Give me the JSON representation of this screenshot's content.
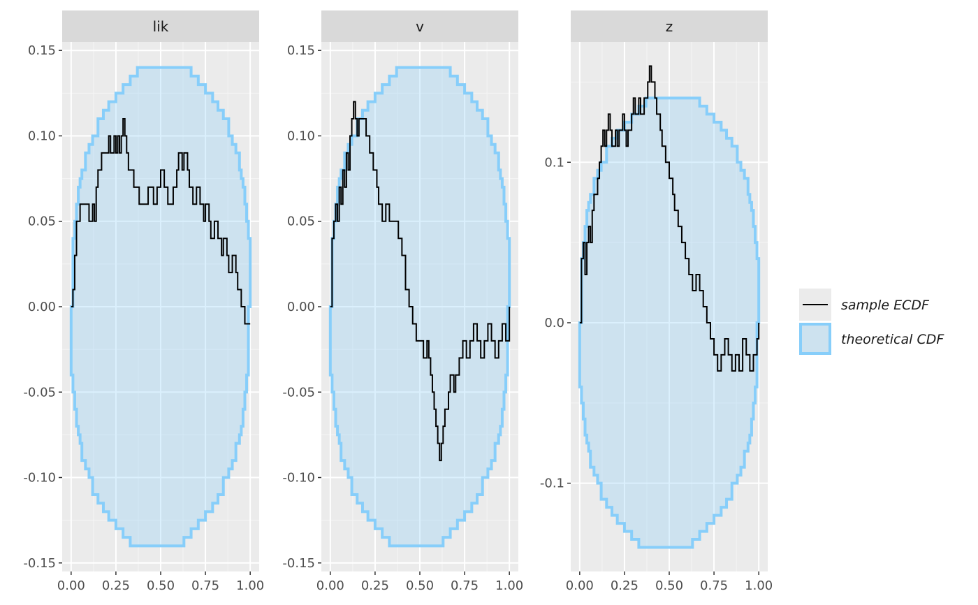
{
  "chart_data": {
    "type": "line",
    "legend": {
      "position": "right",
      "items": [
        {
          "label": "sample ECDF",
          "kind": "line",
          "color": "#000000"
        },
        {
          "label": "theoretical CDF",
          "kind": "fill",
          "fill": "#cce6f2",
          "stroke": "#87cefa"
        }
      ]
    },
    "xlim": [
      0,
      1
    ],
    "xticks": [
      0,
      0.25,
      0.5,
      0.75,
      1
    ],
    "xtick_labels": [
      "0.00",
      "0.25",
      "0.50",
      "0.75",
      "1.00"
    ],
    "band": {
      "x": [
        0,
        0.01,
        0.02,
        0.03,
        0.04,
        0.05,
        0.06,
        0.08,
        0.1,
        0.12,
        0.15,
        0.18,
        0.21,
        0.25,
        0.29,
        0.33,
        0.37,
        0.63,
        0.67,
        0.71,
        0.75,
        0.79,
        0.82,
        0.85,
        0.88,
        0.9,
        0.92,
        0.94,
        0.95,
        0.96,
        0.97,
        0.98,
        0.99,
        1.0
      ],
      "upper": [
        0,
        0.04,
        0.05,
        0.06,
        0.07,
        0.075,
        0.08,
        0.09,
        0.095,
        0.1,
        0.11,
        0.115,
        0.12,
        0.125,
        0.13,
        0.135,
        0.14,
        0.14,
        0.135,
        0.13,
        0.125,
        0.12,
        0.115,
        0.11,
        0.1,
        0.095,
        0.09,
        0.08,
        0.075,
        0.07,
        0.06,
        0.05,
        0.04,
        0.0
      ]
    },
    "panels": [
      {
        "strip": "lik",
        "ylim": [
          -0.155,
          0.155
        ],
        "yticks": [
          -0.15,
          -0.1,
          -0.05,
          0,
          0.05,
          0.1,
          0.15
        ],
        "ytick_labels": [
          "-0.15",
          "-0.10",
          "-0.05",
          "0.00",
          "0.05",
          "0.10",
          "0.15"
        ],
        "band_scale": 1.0,
        "ecdf": {
          "x": [
            0,
            0.01,
            0.02,
            0.03,
            0.05,
            0.08,
            0.1,
            0.12,
            0.13,
            0.14,
            0.15,
            0.17,
            0.19,
            0.21,
            0.22,
            0.24,
            0.25,
            0.26,
            0.27,
            0.28,
            0.29,
            0.3,
            0.31,
            0.32,
            0.33,
            0.35,
            0.38,
            0.41,
            0.43,
            0.46,
            0.48,
            0.5,
            0.52,
            0.54,
            0.57,
            0.59,
            0.6,
            0.62,
            0.63,
            0.65,
            0.66,
            0.68,
            0.7,
            0.72,
            0.74,
            0.75,
            0.77,
            0.78,
            0.8,
            0.82,
            0.84,
            0.85,
            0.87,
            0.88,
            0.9,
            0.92,
            0.93,
            0.95,
            0.97,
            0.98,
            1.0
          ],
          "y": [
            0,
            0.01,
            0.03,
            0.05,
            0.06,
            0.06,
            0.05,
            0.06,
            0.05,
            0.07,
            0.08,
            0.09,
            0.09,
            0.1,
            0.09,
            0.1,
            0.09,
            0.1,
            0.09,
            0.1,
            0.11,
            0.1,
            0.09,
            0.08,
            0.08,
            0.07,
            0.06,
            0.06,
            0.07,
            0.06,
            0.07,
            0.08,
            0.07,
            0.06,
            0.07,
            0.08,
            0.09,
            0.08,
            0.09,
            0.08,
            0.07,
            0.06,
            0.07,
            0.06,
            0.05,
            0.06,
            0.05,
            0.04,
            0.05,
            0.04,
            0.03,
            0.04,
            0.03,
            0.02,
            0.03,
            0.02,
            0.01,
            0.0,
            -0.01,
            -0.01,
            -0.01
          ]
        }
      },
      {
        "strip": "v",
        "ylim": [
          -0.155,
          0.155
        ],
        "yticks": [
          -0.15,
          -0.1,
          -0.05,
          0,
          0.05,
          0.1,
          0.15
        ],
        "ytick_labels": [
          "-0.15",
          "-0.10",
          "-0.05",
          "0.00",
          "0.05",
          "0.10",
          "0.15"
        ],
        "band_scale": 1.0,
        "ecdf": {
          "x": [
            0,
            0.01,
            0.02,
            0.03,
            0.04,
            0.05,
            0.06,
            0.07,
            0.08,
            0.09,
            0.1,
            0.11,
            0.12,
            0.13,
            0.14,
            0.15,
            0.16,
            0.18,
            0.2,
            0.22,
            0.24,
            0.26,
            0.27,
            0.29,
            0.31,
            0.33,
            0.36,
            0.38,
            0.4,
            0.42,
            0.44,
            0.46,
            0.48,
            0.5,
            0.52,
            0.54,
            0.55,
            0.56,
            0.57,
            0.58,
            0.59,
            0.6,
            0.61,
            0.62,
            0.63,
            0.64,
            0.66,
            0.67,
            0.69,
            0.7,
            0.72,
            0.74,
            0.76,
            0.78,
            0.8,
            0.82,
            0.84,
            0.86,
            0.88,
            0.9,
            0.92,
            0.94,
            0.96,
            0.98,
            1.0
          ],
          "y": [
            0,
            0.04,
            0.05,
            0.06,
            0.05,
            0.07,
            0.06,
            0.08,
            0.07,
            0.09,
            0.08,
            0.1,
            0.11,
            0.12,
            0.11,
            0.1,
            0.11,
            0.11,
            0.1,
            0.09,
            0.08,
            0.07,
            0.06,
            0.05,
            0.06,
            0.05,
            0.05,
            0.04,
            0.03,
            0.01,
            0.0,
            -0.01,
            -0.02,
            -0.02,
            -0.03,
            -0.02,
            -0.03,
            -0.04,
            -0.05,
            -0.06,
            -0.07,
            -0.08,
            -0.09,
            -0.08,
            -0.07,
            -0.06,
            -0.05,
            -0.04,
            -0.05,
            -0.04,
            -0.03,
            -0.02,
            -0.03,
            -0.02,
            -0.01,
            -0.02,
            -0.03,
            -0.02,
            -0.01,
            -0.02,
            -0.03,
            -0.02,
            -0.01,
            -0.02,
            0.0
          ]
        }
      },
      {
        "strip": "z",
        "ylim": [
          -0.155,
          0.175
        ],
        "yticks": [
          -0.1,
          0,
          0.1
        ],
        "ytick_labels": [
          "-0.1",
          "0.0",
          "0.1"
        ],
        "minor_yticks": [
          -0.05,
          0.05,
          0.15
        ],
        "band_scale": 1.0,
        "ecdf": {
          "x": [
            0,
            0.01,
            0.02,
            0.03,
            0.04,
            0.05,
            0.06,
            0.07,
            0.08,
            0.1,
            0.11,
            0.12,
            0.13,
            0.14,
            0.15,
            0.16,
            0.17,
            0.18,
            0.2,
            0.21,
            0.22,
            0.24,
            0.25,
            0.26,
            0.27,
            0.29,
            0.3,
            0.31,
            0.33,
            0.34,
            0.36,
            0.38,
            0.39,
            0.4,
            0.42,
            0.43,
            0.45,
            0.46,
            0.48,
            0.5,
            0.52,
            0.53,
            0.55,
            0.57,
            0.59,
            0.61,
            0.63,
            0.65,
            0.67,
            0.69,
            0.71,
            0.73,
            0.75,
            0.77,
            0.79,
            0.81,
            0.83,
            0.85,
            0.87,
            0.89,
            0.91,
            0.93,
            0.95,
            0.97,
            0.99,
            1.0
          ],
          "y": [
            0,
            0.04,
            0.05,
            0.03,
            0.05,
            0.06,
            0.05,
            0.07,
            0.08,
            0.09,
            0.1,
            0.11,
            0.12,
            0.11,
            0.12,
            0.13,
            0.12,
            0.11,
            0.12,
            0.11,
            0.12,
            0.13,
            0.12,
            0.11,
            0.12,
            0.13,
            0.14,
            0.13,
            0.14,
            0.13,
            0.14,
            0.15,
            0.16,
            0.15,
            0.14,
            0.13,
            0.12,
            0.11,
            0.1,
            0.09,
            0.08,
            0.07,
            0.06,
            0.05,
            0.04,
            0.03,
            0.02,
            0.03,
            0.02,
            0.01,
            0.0,
            -0.01,
            -0.02,
            -0.03,
            -0.02,
            -0.01,
            -0.02,
            -0.03,
            -0.02,
            -0.03,
            -0.01,
            -0.02,
            -0.03,
            -0.02,
            -0.01,
            0.0
          ]
        }
      }
    ]
  }
}
